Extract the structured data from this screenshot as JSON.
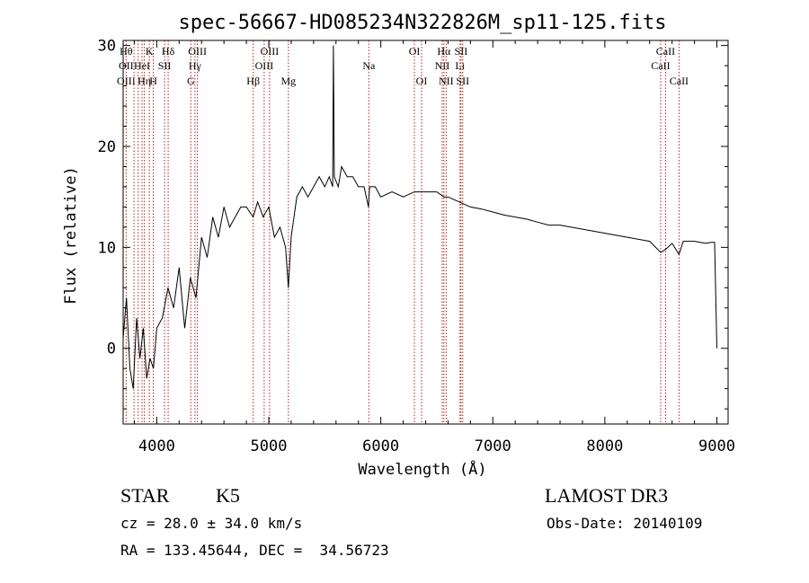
{
  "colors": {
    "line": "#000000",
    "marker": "#b22222",
    "background": "#ffffff"
  },
  "chart_data": {
    "type": "line",
    "title": "spec-56667-HD085234N322826M_sp11-125.fits",
    "xlabel": "Wavelength (Å)",
    "ylabel": "Flux (relative)",
    "xlim": [
      3700,
      9100
    ],
    "ylim": [
      -7.5,
      30.5
    ],
    "xticks": [
      4000,
      5000,
      6000,
      7000,
      8000,
      9000
    ],
    "xtick_labels": [
      "4000",
      "5000",
      "6000",
      "7000",
      "8000",
      "9000"
    ],
    "yticks": [
      0,
      10,
      20,
      30
    ],
    "ytick_labels": [
      "0",
      "10",
      "20",
      "30"
    ],
    "grid": false,
    "series": [
      {
        "x": [
          3700,
          3730,
          3760,
          3790,
          3820,
          3850,
          3880,
          3910,
          3940,
          3970,
          4000,
          4050,
          4100,
          4150,
          4200,
          4250,
          4300,
          4350,
          4400,
          4450,
          4500,
          4550,
          4600,
          4650,
          4700,
          4750,
          4800,
          4860,
          4900,
          4950,
          5000,
          5050,
          5100,
          5150,
          5175,
          5200,
          5250,
          5300,
          5350,
          5400,
          5450,
          5500,
          5540,
          5570,
          5577,
          5585,
          5620,
          5650,
          5700,
          5750,
          5800,
          5850,
          5890,
          5900,
          5950,
          6000,
          6100,
          6200,
          6300,
          6400,
          6500,
          6563,
          6600,
          6700,
          6800,
          6900,
          7000,
          7100,
          7200,
          7300,
          7400,
          7500,
          7600,
          7700,
          7800,
          7900,
          8000,
          8100,
          8200,
          8300,
          8400,
          8498,
          8542,
          8600,
          8662,
          8700,
          8800,
          8900,
          8950,
          8980,
          9000
        ],
        "y": [
          1,
          5,
          -2,
          -4,
          3,
          -1,
          2,
          -3,
          -1,
          -2,
          2,
          3,
          6,
          4,
          8,
          2,
          7,
          5,
          11,
          9,
          13,
          11,
          14,
          12,
          13,
          14,
          14,
          13,
          14.5,
          13,
          14,
          11,
          12,
          10,
          6,
          11,
          15,
          16,
          15,
          16,
          17,
          16,
          17,
          16,
          30,
          17,
          16,
          18,
          17,
          17,
          16,
          16,
          14,
          16,
          16,
          15,
          15.5,
          15,
          15.5,
          15.5,
          15.5,
          15,
          15,
          14.5,
          14,
          13.8,
          13.5,
          13.2,
          13,
          12.8,
          12.5,
          12.2,
          12.2,
          12,
          11.8,
          11.6,
          11.4,
          11.2,
          11,
          10.8,
          10.6,
          9.5,
          9.8,
          10.4,
          9.3,
          10.6,
          10.6,
          10.4,
          10.5,
          10.5,
          0
        ]
      }
    ],
    "line_markers": [
      {
        "x": 3727,
        "labels": [
          "Hθ",
          "OII",
          "OIII"
        ]
      },
      {
        "x": 3797,
        "labels": []
      },
      {
        "x": 3835,
        "labels": []
      },
      {
        "x": 3869,
        "labels": [
          "",
          "HeI"
        ]
      },
      {
        "x": 3889,
        "labels": [
          "",
          "",
          "Hη"
        ]
      },
      {
        "x": 3934,
        "labels": [
          "K"
        ]
      },
      {
        "x": 3969,
        "labels": [
          "",
          "",
          "H"
        ]
      },
      {
        "x": 4070,
        "labels": [
          "",
          "SII"
        ]
      },
      {
        "x": 4102,
        "labels": [
          "Hδ"
        ]
      },
      {
        "x": 4304,
        "labels": [
          "",
          "",
          "G"
        ]
      },
      {
        "x": 4341,
        "labels": [
          "",
          "Hγ"
        ]
      },
      {
        "x": 4363,
        "labels": [
          "OIII"
        ]
      },
      {
        "x": 4861,
        "labels": [
          "",
          "",
          "Hβ"
        ]
      },
      {
        "x": 4959,
        "labels": [
          "",
          "OIII"
        ]
      },
      {
        "x": 5007,
        "labels": [
          "OIII"
        ]
      },
      {
        "x": 5175,
        "labels": [
          "",
          "",
          "Mg"
        ]
      },
      {
        "x": 5893,
        "labels": [
          "",
          "Na"
        ]
      },
      {
        "x": 6300,
        "labels": [
          "OI"
        ]
      },
      {
        "x": 6364,
        "labels": [
          "",
          "",
          "OI"
        ]
      },
      {
        "x": 6548,
        "labels": [
          "",
          "NII"
        ]
      },
      {
        "x": 6563,
        "labels": [
          "Hα"
        ]
      },
      {
        "x": 6583,
        "labels": [
          "",
          "",
          "NII"
        ]
      },
      {
        "x": 6707,
        "labels": [
          "",
          "Li"
        ]
      },
      {
        "x": 6716,
        "labels": [
          "SII"
        ]
      },
      {
        "x": 6731,
        "labels": [
          "",
          "",
          "SII"
        ]
      },
      {
        "x": 8498,
        "labels": [
          "",
          "CaII"
        ]
      },
      {
        "x": 8542,
        "labels": [
          "CaII"
        ]
      },
      {
        "x": 8662,
        "labels": [
          "",
          "",
          "CaII"
        ]
      }
    ]
  },
  "info": {
    "object_class": "STAR",
    "subclass": "K5",
    "survey": "LAMOST DR3",
    "cz": "cz = 28.0 ± 34.0 km/s",
    "obs_date": "Obs-Date: 20140109",
    "coords": "RA = 133.45644, DEC =  34.56723"
  }
}
